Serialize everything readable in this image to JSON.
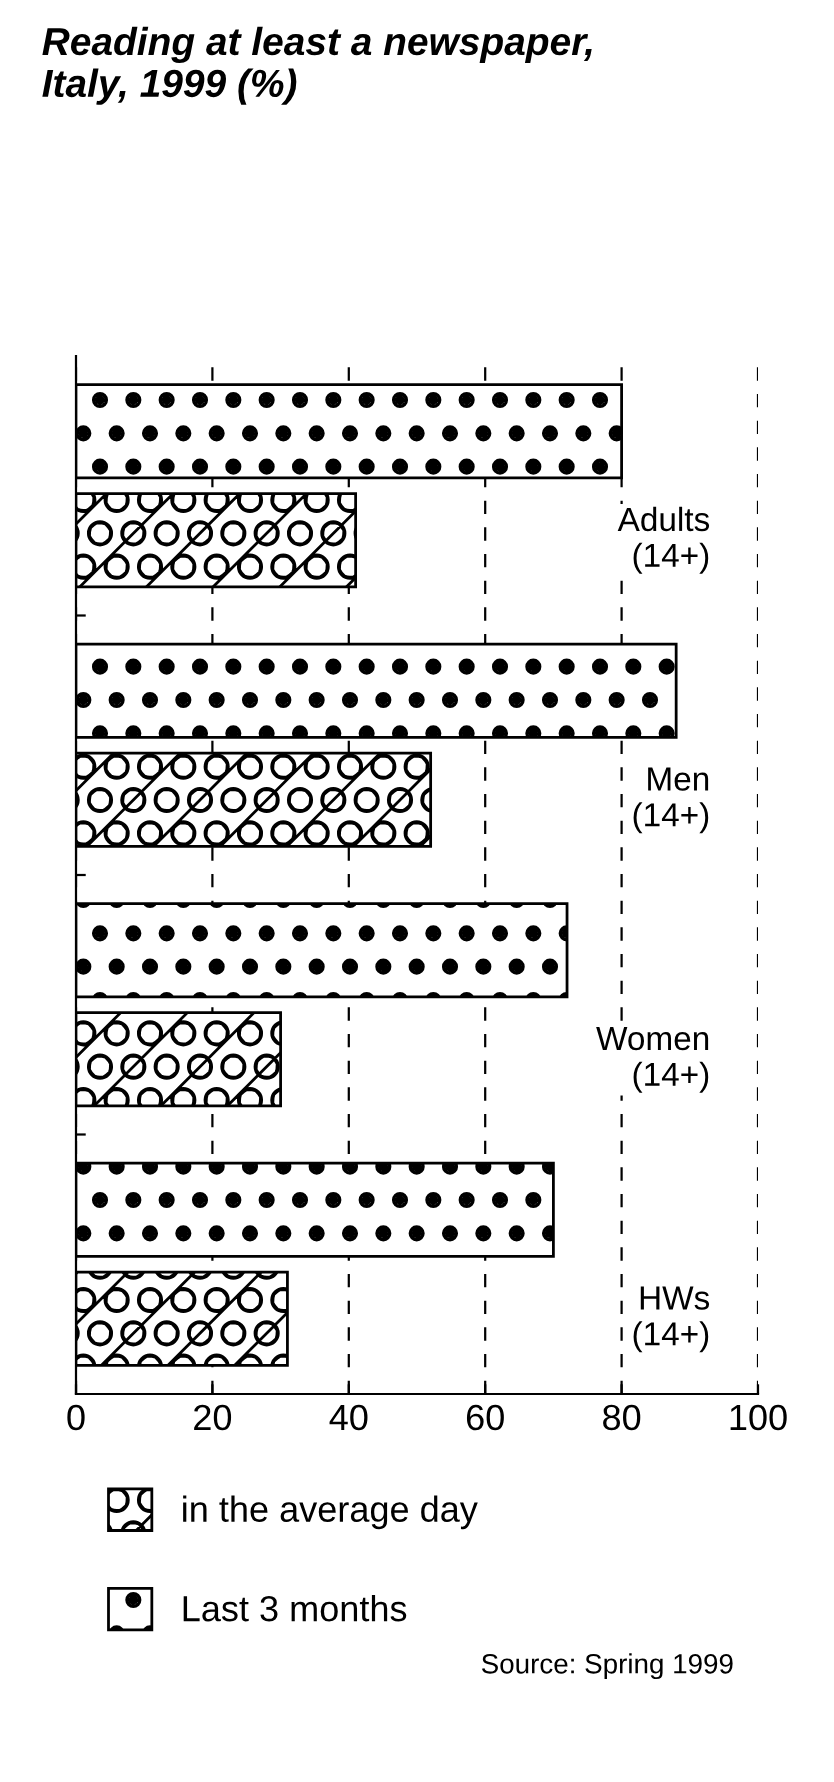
{
  "chart_data": {
    "type": "bar",
    "orientation": "horizontal",
    "title": "Reading at least a newspaper,\nItaly, 1999 (%)",
    "categories": [
      "Adults\n(14+)",
      "Men\n(14+)",
      "Women\n(14+)",
      "HWs\n(14+)"
    ],
    "series": [
      {
        "name": "in the average day",
        "color": "#000000",
        "values": [
          41,
          52,
          30,
          31
        ]
      },
      {
        "name": "Last 3 months",
        "color": "#000000",
        "values": [
          80,
          88,
          72,
          70
        ]
      }
    ],
    "xlim": [
      0,
      100
    ],
    "xticks": [
      0,
      20,
      40,
      60,
      80,
      100
    ],
    "grid": "x",
    "legend": "bottom",
    "tick_labels": "x",
    "annotations": [
      "Source: Spring 1999"
    ]
  }
}
